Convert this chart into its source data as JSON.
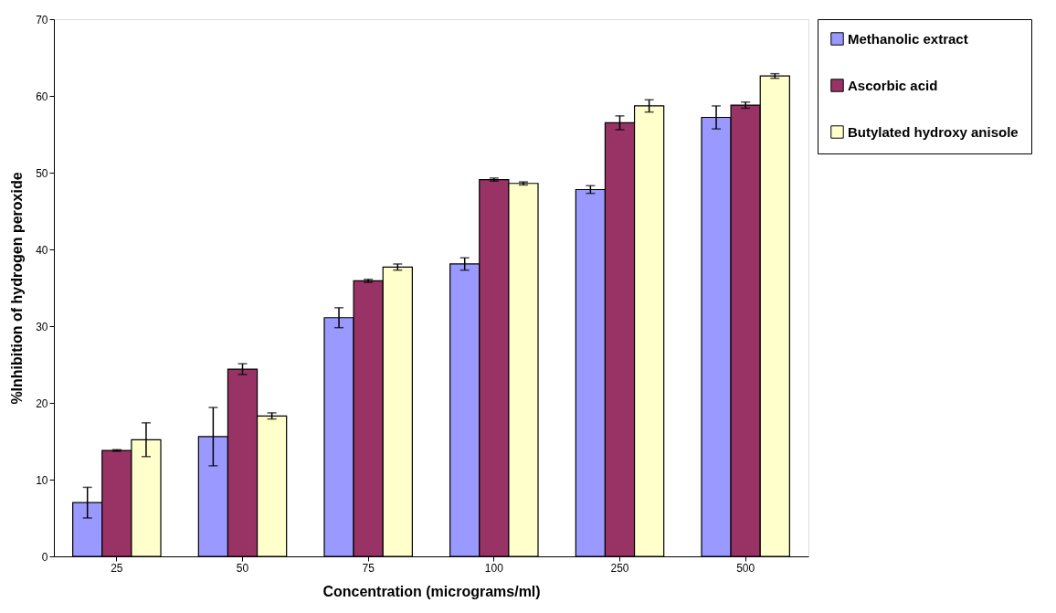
{
  "chart_data": {
    "type": "bar",
    "xlabel": "Concentration (micrograms/ml)",
    "ylabel": "%Inhibition of hydrogen peroxide",
    "categories": [
      "25",
      "50",
      "75",
      "100",
      "250",
      "500"
    ],
    "series": [
      {
        "name": "Methanolic extract",
        "color": "#9999ff",
        "values": [
          7.0,
          15.6,
          31.1,
          38.1,
          47.8,
          57.2
        ],
        "errors": [
          2.0,
          3.8,
          1.3,
          0.8,
          0.5,
          1.5
        ]
      },
      {
        "name": "Ascorbic acid",
        "color": "#993366",
        "values": [
          13.8,
          24.4,
          35.9,
          49.1,
          56.5,
          58.8
        ],
        "errors": [
          0.1,
          0.7,
          0.2,
          0.2,
          0.9,
          0.4
        ]
      },
      {
        "name": "Butylated hydroxy anisole",
        "color": "#ffffcc",
        "values": [
          15.2,
          18.3,
          37.7,
          48.6,
          58.7,
          62.6
        ],
        "errors": [
          2.2,
          0.4,
          0.4,
          0.2,
          0.8,
          0.3
        ]
      }
    ],
    "ylim": [
      0,
      70
    ],
    "yticks": [
      0,
      10,
      20,
      30,
      40,
      50,
      60,
      70
    ],
    "grid": false,
    "legend": "right"
  }
}
